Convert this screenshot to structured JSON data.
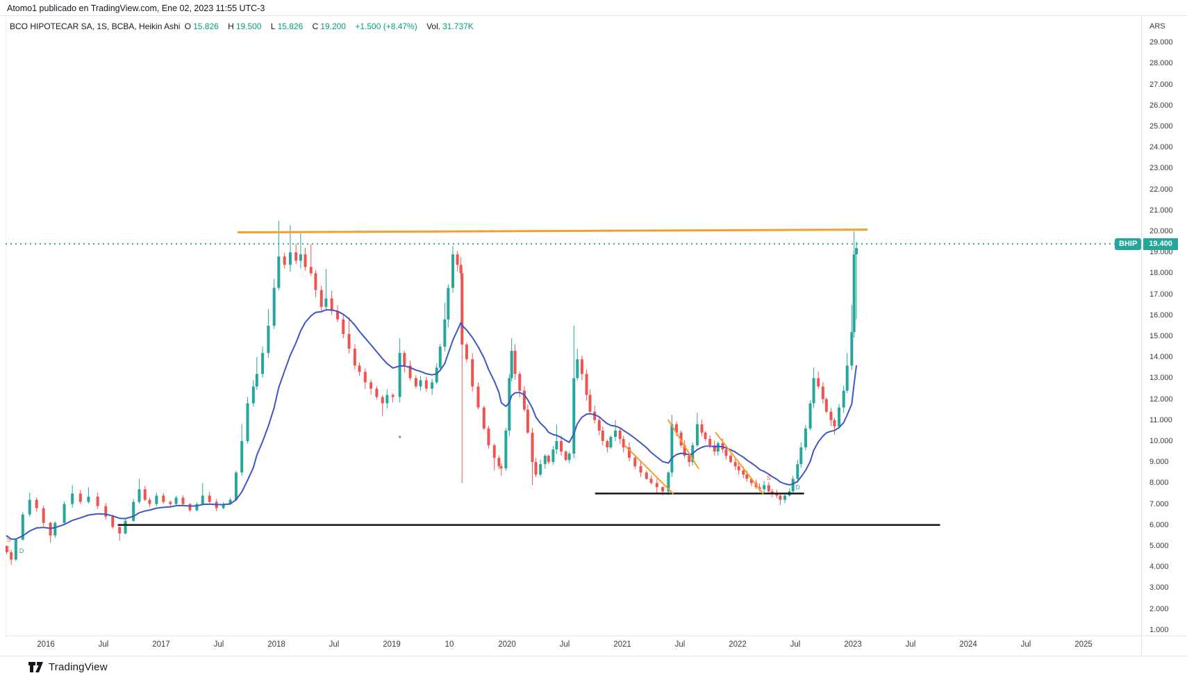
{
  "page": {
    "attribution": "Atomo1 publicado en TradingView.com, Ene 02, 2023 11:55 UTC-3",
    "watermark": "TradingView"
  },
  "legend": {
    "title": "BCO HIPOTECAR SA, 1S, BCBA, Heikin Ashi",
    "o_label": "O",
    "o_value": "15.826",
    "h_label": "H",
    "h_value": "19.500",
    "l_label": "L",
    "l_value": "15.826",
    "c_label": "C",
    "c_value": "19.200",
    "change": "+1.500 (+8.47%)",
    "vol_label": "Vol.",
    "vol_value": "31.737K"
  },
  "price_axis": {
    "currency": "ARS",
    "ticks": [
      "29.000",
      "28.000",
      "27.000",
      "26.000",
      "25.000",
      "24.000",
      "23.000",
      "22.000",
      "21.000",
      "20.000",
      "19.000",
      "18.000",
      "17.000",
      "16.000",
      "15.000",
      "14.000",
      "13.000",
      "12.000",
      "11.000",
      "10.000",
      "9.000",
      "8.000",
      "7.000",
      "6.000",
      "5.000",
      "4.000",
      "3.000",
      "2.000",
      "1.000"
    ]
  },
  "badge": {
    "symbol": "BHIP",
    "price": "19.400"
  },
  "time_axis": {
    "labels": [
      {
        "text": "2016",
        "year": 2016
      },
      {
        "text": "Jul",
        "year": 2016.5
      },
      {
        "text": "2017",
        "year": 2017
      },
      {
        "text": "Jul",
        "year": 2017.5
      },
      {
        "text": "2018",
        "year": 2018
      },
      {
        "text": "Jul",
        "year": 2018.5
      },
      {
        "text": "2019",
        "year": 2019
      },
      {
        "text": "10",
        "year": 2019.5
      },
      {
        "text": "2020",
        "year": 2020
      },
      {
        "text": "Jul",
        "year": 2020.5
      },
      {
        "text": "2021",
        "year": 2021
      },
      {
        "text": "Jul",
        "year": 2021.5
      },
      {
        "text": "2022",
        "year": 2022
      },
      {
        "text": "Jul",
        "year": 2022.5
      },
      {
        "text": "2023",
        "year": 2023
      },
      {
        "text": "Jul",
        "year": 2023.5
      },
      {
        "text": "2024",
        "year": 2024
      },
      {
        "text": "Jul",
        "year": 2024.5
      },
      {
        "text": "2025",
        "year": 2025
      }
    ]
  },
  "chart_data": {
    "type": "candlestick-heikin-ashi",
    "symbol": "BHIP",
    "title": "BCO HIPOTECAR SA, 1S, BCBA, Heikin Ashi",
    "currency": "ARS",
    "x_range": [
      2015.6,
      2025.5
    ],
    "y_range": [
      0.6,
      29.6
    ],
    "grid": false,
    "last_price": 19.4,
    "colors": {
      "up": "#26a69a",
      "down": "#ef5350",
      "ma": "#3c55c8",
      "trend": "#f59e2c",
      "support": "#141414",
      "last_price_line": "#26a69a",
      "value_text": "#089981",
      "badge": "#26a69a"
    },
    "candles_note": "[year, close, high_override?, low_override?] weekly-approx Heikin Ashi closes read off chart",
    "candles": [
      [
        2015.66,
        4.7
      ],
      [
        2015.7,
        4.35,
        null,
        4.1
      ],
      [
        2015.74,
        5.3
      ],
      [
        2015.8,
        6.5
      ],
      [
        2015.86,
        7.2,
        7.55
      ],
      [
        2015.92,
        6.8
      ],
      [
        2015.98,
        6.1
      ],
      [
        2016.04,
        5.5,
        null,
        5.15
      ],
      [
        2016.08,
        6.1
      ],
      [
        2016.16,
        7.0
      ],
      [
        2016.23,
        7.5,
        7.9
      ],
      [
        2016.3,
        7.1
      ],
      [
        2016.37,
        7.35,
        7.8
      ],
      [
        2016.45,
        6.9
      ],
      [
        2016.52,
        6.4
      ],
      [
        2016.58,
        5.9
      ],
      [
        2016.64,
        5.6,
        null,
        5.25
      ],
      [
        2016.69,
        6.2
      ],
      [
        2016.76,
        7.1
      ],
      [
        2016.81,
        7.7,
        8.2
      ],
      [
        2016.86,
        7.2
      ],
      [
        2016.9,
        7.0
      ],
      [
        2016.96,
        7.4
      ],
      [
        2017.02,
        7.1
      ],
      [
        2017.08,
        7.0
      ],
      [
        2017.13,
        7.3
      ],
      [
        2017.19,
        7.0
      ],
      [
        2017.25,
        6.7
      ],
      [
        2017.31,
        7.0
      ],
      [
        2017.36,
        7.4,
        8.0
      ],
      [
        2017.42,
        7.1
      ],
      [
        2017.48,
        6.8
      ],
      [
        2017.54,
        7.0
      ],
      [
        2017.6,
        7.2
      ],
      [
        2017.65,
        8.5
      ],
      [
        2017.7,
        10.0,
        10.8
      ],
      [
        2017.75,
        11.8
      ],
      [
        2017.8,
        12.6
      ],
      [
        2017.83,
        13.2,
        14.0
      ],
      [
        2017.88,
        14.2
      ],
      [
        2017.93,
        15.5,
        16.3
      ],
      [
        2017.98,
        17.3
      ],
      [
        2018.02,
        18.8,
        20.5
      ],
      [
        2018.07,
        18.4
      ],
      [
        2018.12,
        19.0,
        20.3
      ],
      [
        2018.17,
        18.6
      ],
      [
        2018.21,
        18.9,
        19.9
      ],
      [
        2018.25,
        18.3
      ],
      [
        2018.3,
        18.0,
        19.4
      ],
      [
        2018.34,
        17.2
      ],
      [
        2018.39,
        16.4
      ],
      [
        2018.43,
        16.8,
        18.2
      ],
      [
        2018.48,
        16.2
      ],
      [
        2018.53,
        15.8
      ],
      [
        2018.58,
        15.1
      ],
      [
        2018.63,
        14.4,
        15.9
      ],
      [
        2018.68,
        13.6
      ],
      [
        2018.72,
        13.3
      ],
      [
        2018.77,
        12.8
      ],
      [
        2018.82,
        12.5
      ],
      [
        2018.87,
        12.1
      ],
      [
        2018.92,
        11.8,
        null,
        11.2
      ],
      [
        2018.96,
        12.2
      ],
      [
        2019.01,
        12.1
      ],
      [
        2019.07,
        14.2,
        14.9
      ],
      [
        2019.11,
        13.6
      ],
      [
        2019.16,
        13.0
      ],
      [
        2019.21,
        12.6
      ],
      [
        2019.25,
        12.9
      ],
      [
        2019.3,
        12.5
      ],
      [
        2019.35,
        12.8
      ],
      [
        2019.39,
        13.5
      ],
      [
        2019.42,
        14.5
      ],
      [
        2019.46,
        15.8,
        16.6
      ],
      [
        2019.49,
        17.3
      ],
      [
        2019.53,
        18.9,
        19.3
      ],
      [
        2019.57,
        18.4
      ],
      [
        2019.6,
        18.0
      ],
      [
        2019.61,
        14.6,
        null,
        8.0
      ],
      [
        2019.65,
        13.9
      ],
      [
        2019.7,
        12.6
      ],
      [
        2019.75,
        11.6
      ],
      [
        2019.8,
        10.6
      ],
      [
        2019.84,
        9.8
      ],
      [
        2019.89,
        9.2,
        null,
        8.6
      ],
      [
        2019.93,
        8.8
      ],
      [
        2019.95,
        8.7,
        null,
        8.35
      ],
      [
        2019.99,
        10.5
      ],
      [
        2020.02,
        13.0
      ],
      [
        2020.04,
        14.3,
        14.9
      ],
      [
        2020.07,
        13.2
      ],
      [
        2020.11,
        12.4
      ],
      [
        2020.15,
        11.5
      ],
      [
        2020.18,
        10.4
      ],
      [
        2020.22,
        9.0,
        null,
        7.9
      ],
      [
        2020.25,
        8.4
      ],
      [
        2020.29,
        8.9
      ],
      [
        2020.33,
        9.3
      ],
      [
        2020.36,
        9.0
      ],
      [
        2020.4,
        9.6
      ],
      [
        2020.43,
        10.0,
        10.8
      ],
      [
        2020.47,
        9.5
      ],
      [
        2020.51,
        9.1
      ],
      [
        2020.54,
        9.4
      ],
      [
        2020.58,
        13.0,
        15.5
      ],
      [
        2020.61,
        13.9,
        14.4
      ],
      [
        2020.65,
        13.2
      ],
      [
        2020.69,
        12.2
      ],
      [
        2020.72,
        11.4
      ],
      [
        2020.76,
        11.0
      ],
      [
        2020.8,
        10.5
      ],
      [
        2020.83,
        10.0
      ],
      [
        2020.87,
        9.7
      ],
      [
        2020.9,
        10.2
      ],
      [
        2020.94,
        10.5,
        11.0
      ],
      [
        2020.98,
        10.1
      ],
      [
        2021.01,
        9.7
      ],
      [
        2021.06,
        9.2
      ],
      [
        2021.11,
        8.8
      ],
      [
        2021.16,
        8.5
      ],
      [
        2021.21,
        8.2
      ],
      [
        2021.25,
        8.0
      ],
      [
        2021.3,
        7.8,
        null,
        7.5
      ],
      [
        2021.35,
        7.6,
        null,
        7.4
      ],
      [
        2021.4,
        8.5
      ],
      [
        2021.43,
        10.8,
        11.25
      ],
      [
        2021.47,
        10.4
      ],
      [
        2021.51,
        9.8
      ],
      [
        2021.54,
        9.3
      ],
      [
        2021.58,
        9.0
      ],
      [
        2021.61,
        9.8
      ],
      [
        2021.65,
        10.8,
        11.35
      ],
      [
        2021.69,
        10.4
      ],
      [
        2021.72,
        10.1
      ],
      [
        2021.76,
        9.8
      ],
      [
        2021.8,
        9.5
      ],
      [
        2021.83,
        9.9
      ],
      [
        2021.87,
        9.6
      ],
      [
        2021.9,
        9.3
      ],
      [
        2021.94,
        9.0
      ],
      [
        2021.98,
        8.8
      ],
      [
        2022.01,
        8.6
      ],
      [
        2022.05,
        8.4
      ],
      [
        2022.08,
        8.2
      ],
      [
        2022.12,
        8.0
      ],
      [
        2022.16,
        7.8
      ],
      [
        2022.19,
        7.7
      ],
      [
        2022.23,
        7.9
      ],
      [
        2022.27,
        7.6
      ],
      [
        2022.3,
        7.5
      ],
      [
        2022.34,
        7.4
      ],
      [
        2022.37,
        7.2,
        null,
        6.95
      ],
      [
        2022.41,
        7.4
      ],
      [
        2022.45,
        7.6
      ],
      [
        2022.48,
        8.2
      ],
      [
        2022.52,
        8.9
      ],
      [
        2022.55,
        9.7
      ],
      [
        2022.59,
        10.6
      ],
      [
        2022.63,
        11.8
      ],
      [
        2022.66,
        13.0,
        13.5
      ],
      [
        2022.7,
        12.6
      ],
      [
        2022.74,
        12.0
      ],
      [
        2022.77,
        11.4
      ],
      [
        2022.81,
        11.0
      ],
      [
        2022.84,
        10.7,
        null,
        10.3
      ],
      [
        2022.88,
        11.6
      ],
      [
        2022.92,
        12.4
      ],
      [
        2022.95,
        13.6,
        14.2
      ],
      [
        2022.99,
        15.2,
        16.5
      ],
      [
        2023.01,
        18.9,
        20.0
      ],
      [
        2023.03,
        19.2,
        19.5,
        15.8
      ]
    ],
    "ma": {
      "name": "moving-average",
      "period": 14,
      "seed": 5.6
    },
    "lines": [
      {
        "name": "resistance-trendline-orange",
        "from": [
          2017.67,
          19.95
        ],
        "to": [
          2023.12,
          20.08
        ],
        "color": "trend",
        "width": 3
      },
      {
        "name": "support-line-6000",
        "from": [
          2016.63,
          6.0
        ],
        "to": [
          2023.75,
          6.0
        ],
        "color": "support",
        "width": 2.5
      },
      {
        "name": "support-line-7500",
        "from": [
          2020.77,
          7.5
        ],
        "to": [
          2022.57,
          7.5
        ],
        "color": "support",
        "width": 2.5
      },
      {
        "name": "down-trendline-1",
        "from": [
          2021.02,
          9.8
        ],
        "to": [
          2021.44,
          7.5
        ],
        "color": "trend",
        "width": 2
      },
      {
        "name": "down-trendline-2",
        "from": [
          2021.4,
          11.0
        ],
        "to": [
          2021.66,
          8.7
        ],
        "color": "trend",
        "width": 2
      },
      {
        "name": "down-trendline-3",
        "from": [
          2021.81,
          10.4
        ],
        "to": [
          2022.22,
          7.5
        ],
        "color": "trend",
        "width": 2
      }
    ],
    "last_price_line": {
      "price": 19.4,
      "style": "dotted"
    },
    "markers": [
      {
        "year": 2015.68,
        "price": 5.3,
        "text": "S",
        "color": "#ef5350"
      },
      {
        "year": 2015.67,
        "price": 4.85,
        "text": "E",
        "color": "#ef5350"
      },
      {
        "year": 2015.79,
        "price": 4.77,
        "text": "D",
        "color": "#26a69a"
      },
      {
        "year": 2022.27,
        "price": 8.25,
        "text": "S",
        "color": "#ef5350"
      },
      {
        "year": 2022.52,
        "price": 7.8,
        "text": "D",
        "color": "#26a69a"
      },
      {
        "year": 2019.07,
        "price": 10.2,
        "text": "dot",
        "color": "#4caf50"
      }
    ]
  }
}
